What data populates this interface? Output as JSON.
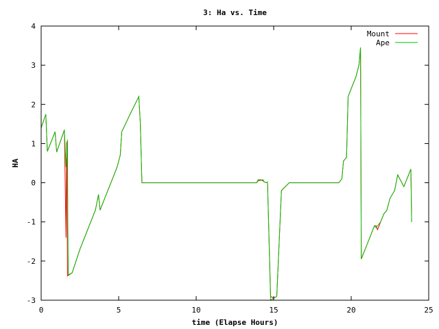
{
  "chart_data": {
    "type": "line",
    "title": "3: Ha vs. Time",
    "xlabel": "time (Elapse Hours)",
    "ylabel": "HA",
    "xlim": [
      0,
      25
    ],
    "ylim": [
      -3,
      4
    ],
    "xticks": [
      0,
      5,
      10,
      15,
      20,
      25
    ],
    "yticks": [
      -3,
      -2,
      -1,
      0,
      1,
      2,
      3,
      4
    ],
    "grid": false,
    "legend_position": "top-right",
    "series": [
      {
        "name": "Mount",
        "color": "#ff0000",
        "x": [
          0,
          0.3,
          0.4,
          0.9,
          1.0,
          1.5,
          1.6,
          1.65,
          1.7,
          2.0,
          2.5,
          3.0,
          3.5,
          3.7,
          3.8,
          4.2,
          4.6,
          4.9,
          5.1,
          5.2,
          5.8,
          6.3,
          6.4,
          6.5,
          7.0,
          10.0,
          13.5,
          13.9,
          14.0,
          14.1,
          14.3,
          14.4,
          14.5,
          14.6,
          14.8,
          15.0,
          15.2,
          15.5,
          16.0,
          18.0,
          19.2,
          19.4,
          19.5,
          19.7,
          19.8,
          20.0,
          20.3,
          20.5,
          20.6,
          20.65,
          20.7,
          21.0,
          21.5,
          21.6,
          21.7,
          21.9,
          22.1,
          22.3,
          22.5,
          22.8,
          23.0,
          23.4,
          23.8,
          23.85,
          23.9
        ],
        "y": [
          1.4,
          1.75,
          0.8,
          1.3,
          0.78,
          1.35,
          -1.4,
          1.05,
          -2.38,
          -2.3,
          -1.7,
          -1.2,
          -0.7,
          -0.3,
          -0.7,
          -0.3,
          0.1,
          0.4,
          0.7,
          1.3,
          1.8,
          2.2,
          1.5,
          0.0,
          0.0,
          0.0,
          0.0,
          0.0,
          0.05,
          0.08,
          0.05,
          0.02,
          0.0,
          0.02,
          -2.9,
          -2.95,
          -2.9,
          -0.2,
          0.0,
          0.0,
          0.0,
          0.1,
          0.55,
          0.65,
          2.2,
          2.4,
          2.7,
          3.0,
          3.45,
          -1.95,
          -1.9,
          -1.6,
          -1.1,
          -1.1,
          -1.2,
          -1.0,
          -0.8,
          -0.7,
          -0.4,
          -0.2,
          0.2,
          -0.1,
          0.3,
          0.35,
          -1.0
        ]
      },
      {
        "name": "Ape",
        "color": "#00c000",
        "x": [
          0,
          0.3,
          0.4,
          0.9,
          1.0,
          1.5,
          1.6,
          1.7,
          1.72,
          1.75,
          2.0,
          2.5,
          3.0,
          3.5,
          3.7,
          3.8,
          4.2,
          4.6,
          4.9,
          5.1,
          5.2,
          5.8,
          6.3,
          6.4,
          6.5,
          7.0,
          10.0,
          13.5,
          13.9,
          14.0,
          14.1,
          14.3,
          14.4,
          14.5,
          14.6,
          14.8,
          15.0,
          15.2,
          15.5,
          16.0,
          18.0,
          19.2,
          19.4,
          19.5,
          19.7,
          19.8,
          20.0,
          20.3,
          20.5,
          20.6,
          20.65,
          20.7,
          21.0,
          21.5,
          21.6,
          21.7,
          21.9,
          22.1,
          22.3,
          22.5,
          22.8,
          23.0,
          23.4,
          23.8,
          23.85,
          23.9
        ],
        "y": [
          1.4,
          1.75,
          0.8,
          1.3,
          0.78,
          1.35,
          0.4,
          1.1,
          -1.1,
          -2.35,
          -2.3,
          -1.7,
          -1.2,
          -0.7,
          -0.3,
          -0.7,
          -0.3,
          0.1,
          0.4,
          0.7,
          1.3,
          1.8,
          2.2,
          1.5,
          0.0,
          0.0,
          0.0,
          0.0,
          0.0,
          0.08,
          0.05,
          0.08,
          0.02,
          0.0,
          0.02,
          -3.0,
          -2.95,
          -2.9,
          -0.2,
          0.0,
          0.0,
          0.0,
          0.1,
          0.55,
          0.65,
          2.2,
          2.4,
          2.7,
          3.0,
          3.45,
          -1.95,
          -1.9,
          -1.6,
          -1.1,
          -1.15,
          -1.1,
          -1.0,
          -0.8,
          -0.7,
          -0.4,
          -0.2,
          0.2,
          -0.1,
          0.3,
          0.35,
          -1.0
        ]
      }
    ]
  }
}
